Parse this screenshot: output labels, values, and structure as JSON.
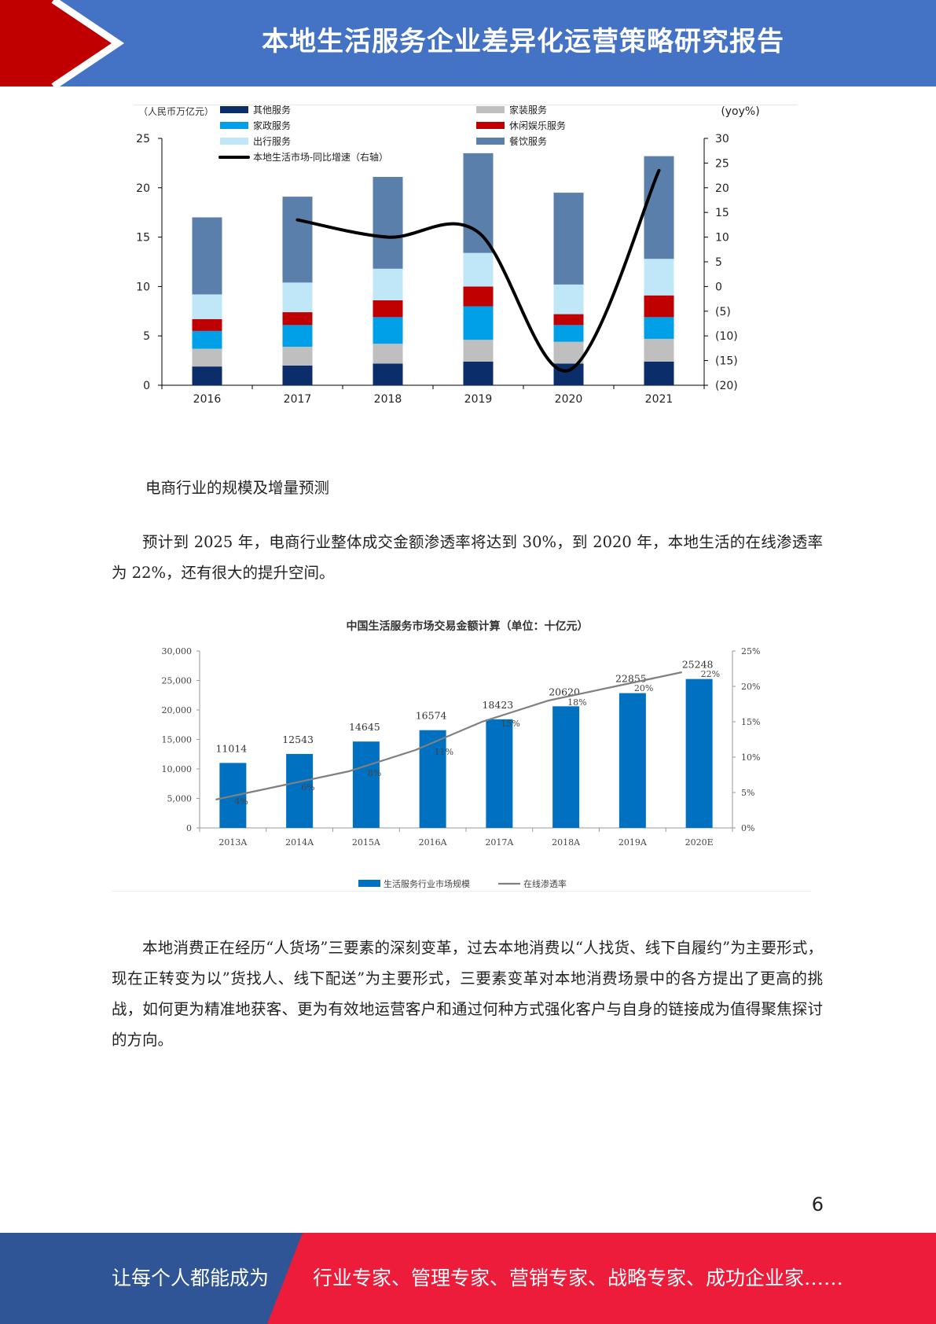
{
  "header": {
    "title": "本地生活服务企业差异化运营策略研究报告",
    "bg_color": "#4472c4",
    "accent_color": "#c00000"
  },
  "chart_data": [
    {
      "type": "bar",
      "stacked": true,
      "unit_left": "（人民币万亿元）",
      "unit_right": "(yoy%)",
      "categories": [
        "2016",
        "2017",
        "2018",
        "2019",
        "2020",
        "2021"
      ],
      "ylim": [
        0,
        25
      ],
      "y2lim": [
        -20,
        30
      ],
      "yticks": [
        "0",
        "5",
        "10",
        "15",
        "20",
        "25"
      ],
      "y2ticks": [
        "(20)",
        "(15)",
        "(10)",
        "(5)",
        "0",
        "5",
        "10",
        "15",
        "20",
        "25",
        "30"
      ],
      "legend_position": "top",
      "series": [
        {
          "name": "其他服务",
          "color": "#0b2e6b",
          "values": [
            1.9,
            2.0,
            2.2,
            2.4,
            2.2,
            2.4
          ]
        },
        {
          "name": "家装服务",
          "color": "#bfbfbf",
          "values": [
            1.8,
            1.9,
            2.0,
            2.2,
            2.2,
            2.3
          ]
        },
        {
          "name": "家政服务",
          "color": "#00a0e9",
          "values": [
            1.8,
            2.2,
            2.7,
            3.4,
            1.7,
            2.2
          ]
        },
        {
          "name": "休闲娱乐服务",
          "color": "#c00000",
          "values": [
            1.2,
            1.3,
            1.7,
            2.0,
            1.1,
            2.2
          ]
        },
        {
          "name": "出行服务",
          "color": "#bfe7f7",
          "values": [
            2.5,
            3.0,
            3.2,
            3.4,
            3.0,
            3.7
          ]
        },
        {
          "name": "餐饮服务",
          "color": "#5b7fab",
          "values": [
            7.8,
            8.7,
            9.3,
            10.1,
            9.3,
            10.4
          ]
        }
      ],
      "line": {
        "name": "本地生活市场-同比增速（右轴）",
        "color": "#000000",
        "axis": "right",
        "values": [
          null,
          13.5,
          10,
          11,
          -17,
          23.5
        ]
      }
    },
    {
      "type": "bar",
      "title": "中国生活服务市场交易金额计算（单位：十亿元）",
      "categories": [
        "2013A",
        "2014A",
        "2015A",
        "2016A",
        "2017A",
        "2018A",
        "2019A",
        "2020E"
      ],
      "ylim": [
        0,
        30000
      ],
      "y2lim": [
        0,
        25
      ],
      "yticks": [
        "0",
        "5,000",
        "10,000",
        "15,000",
        "20,000",
        "25,000",
        "30,000"
      ],
      "y2ticks": [
        "0%",
        "5%",
        "10%",
        "15%",
        "20%",
        "25%"
      ],
      "legend_position": "bottom",
      "series": [
        {
          "name": "生活服务行业市场规模",
          "color": "#0070c0",
          "values": [
            11014,
            12543,
            14645,
            16574,
            18423,
            20620,
            22855,
            25248
          ],
          "labels": [
            "11014",
            "12543",
            "14645",
            "16574",
            "18423",
            "20620",
            "22855",
            "25248"
          ]
        }
      ],
      "line": {
        "name": "在线渗透率",
        "color": "#808080",
        "axis": "right",
        "values": [
          4,
          6,
          8,
          11,
          15,
          18,
          20,
          22
        ],
        "labels": [
          "4%",
          "6%",
          "8%",
          "11%",
          "15%",
          "18%",
          "20%",
          "22%"
        ]
      }
    }
  ],
  "body": {
    "caption": "电商行业的规模及增量预测",
    "para1": "预计到 2025 年，电商行业整体成交金额渗透率将达到 30%，到 2020 年，本地生活的在线渗透率为 22%，还有很大的提升空间。",
    "para2": "本地消费正在经历“人货场”三要素的深刻变革，过去本地消费以“人找货、线下自履约”为主要形式，现在正转变为以”货找人、线下配送”为主要形式，三要素变革对本地消费场景中的各方提出了更高的挑战，如何更为精准地获客、更为有效地运营客户和通过何种方式强化客户与自身的链接成为值得聚焦探讨的方向。"
  },
  "page_number": "6",
  "footer": {
    "left_text": "让每个人都能成为",
    "right_text": "行业专家、管理专家、营销专家、战略专家、成功企业家……",
    "left_color": "#2f5597",
    "right_color": "#ed1c3a"
  }
}
